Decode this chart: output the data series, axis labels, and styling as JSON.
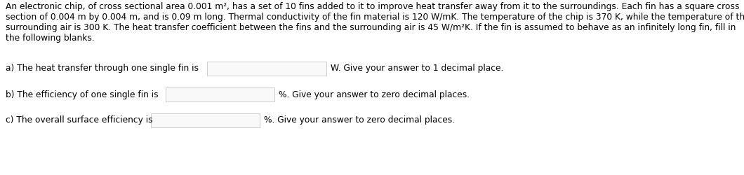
{
  "background_color": "#ffffff",
  "para_line1": "An electronic chip, of cross sectional area 0.001 m², has a set of 10 fins added to it to improve heat transfer away from it to the surroundings. Each fin has a square cross",
  "para_line2": "section of 0.004 m by 0.004 m, and is 0.09 m long. Thermal conductivity of the fin material is 120 W/mK. The temperature of the chip is 370 K, while the temperature of the",
  "para_line3": "surrounding air is 300 K. The heat transfer coefficient between the fins and the surrounding air is 45 W/m²K. If the fin is assumed to behave as an infinitely long fin, fill in",
  "para_line4": "the following blanks.",
  "line1_prefix": "a) The heat transfer through one single fin is",
  "line1_suffix": "W. Give your answer to 1 decimal place.",
  "line2_prefix": "b) The efficiency of one single fin is",
  "line2_suffix": "%. Give your answer to zero decimal places.",
  "line3_prefix": "c) The overall surface efficiency is",
  "line3_suffix": "%. Give your answer to zero decimal places.",
  "text_color": "#000000",
  "font_size": 8.8,
  "box_edge_color": "#cccccc",
  "box_face_color": "#f9f9f9",
  "fig_width": 10.6,
  "fig_height": 2.5,
  "dpi": 100
}
